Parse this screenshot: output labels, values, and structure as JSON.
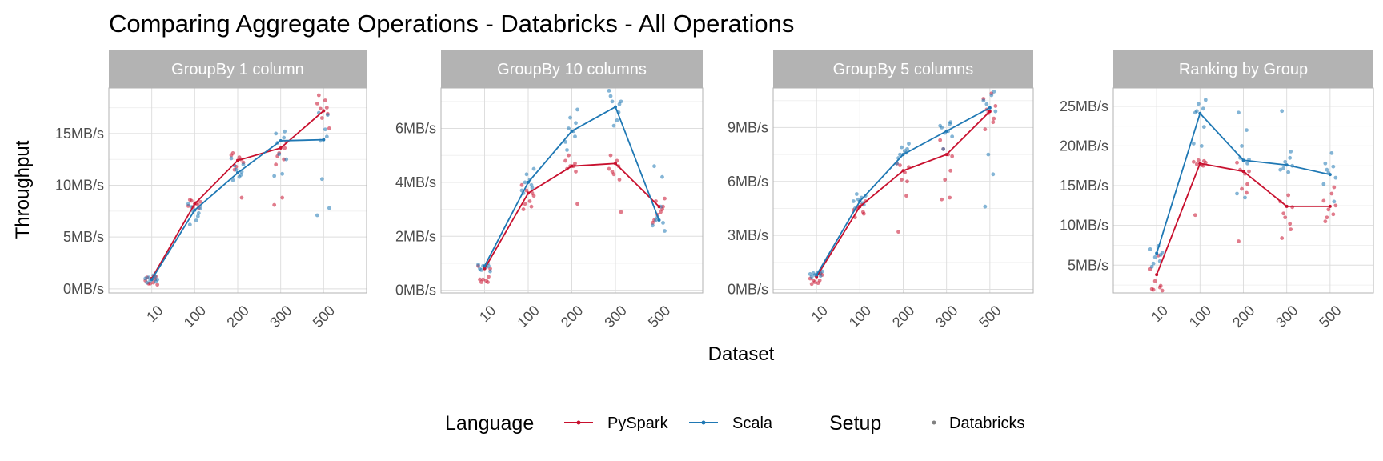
{
  "chart_data": {
    "type": "line",
    "title": "Comparing Aggregate Operations - Databricks - All Operations",
    "xlabel": "Dataset",
    "ylabel": "Throughput",
    "categories": [
      "10",
      "100",
      "200",
      "300",
      "500"
    ],
    "colors": {
      "PySpark": "#c8102e",
      "Scala": "#1f78b4",
      "Databricks": "#808080"
    },
    "legend": {
      "position": "bottom",
      "groups": [
        {
          "title": "Language",
          "items": [
            "PySpark",
            "Scala"
          ]
        },
        {
          "title": "Setup",
          "items": [
            "Databricks"
          ]
        }
      ]
    },
    "grid": true,
    "panels": [
      {
        "label": "GroupBy 1 column",
        "ylim": [
          -0.4,
          19.4
        ],
        "yticks": [
          0,
          5,
          10,
          15
        ],
        "ytick_labels": [
          "0MB/s",
          "5MB/s",
          "10MB/s",
          "15MB/s"
        ],
        "series": [
          {
            "name": "PySpark",
            "values": [
              1.0,
              8.2,
              12.4,
              13.6,
              17.2
            ],
            "points": [
              [
                1.1,
                0.9,
                0.5,
                0.4,
                0.8,
                0.6,
                1.2,
                0.5
              ],
              [
                8.6,
                8.1,
                7.9,
                8.4,
                8.0,
                8.3,
                7.8,
                8.5
              ],
              [
                13.1,
                12.5,
                11.8,
                12.2,
                12.9,
                12.7,
                8.8,
                11.5
              ],
              [
                12.0,
                12.5,
                13.1,
                14.2,
                8.1,
                8.8,
                13.6,
                12.8
              ],
              [
                18.7,
                17.5,
                16.5,
                15.5,
                17.9,
                18.2,
                16.9,
                17.4
              ]
            ]
          },
          {
            "name": "Scala",
            "values": [
              0.9,
              7.6,
              11.2,
              14.3,
              14.4
            ],
            "points": [
              [
                0.6,
                1.2,
                0.8,
                0.9,
                1.0,
                1.3,
                0.7,
                1.1
              ],
              [
                6.2,
                7.0,
                7.5,
                7.8,
                8.2,
                6.6,
                7.3,
                7.9
              ],
              [
                10.5,
                11.0,
                11.5,
                12.0,
                12.6,
                10.8,
                11.3,
                11.9
              ],
              [
                15.0,
                14.6,
                13.0,
                12.5,
                10.9,
                11.1,
                15.2,
                14.1
              ],
              [
                17.0,
                14.7,
                10.6,
                7.8,
                7.1,
                15.4,
                16.8,
                14.3
              ]
            ]
          }
        ]
      },
      {
        "label": "GroupBy 10 columns",
        "ylim": [
          -0.1,
          7.5
        ],
        "yticks": [
          0,
          2,
          4,
          6
        ],
        "ytick_labels": [
          "0MB/s",
          "2MB/s",
          "4MB/s",
          "6MB/s"
        ],
        "series": [
          {
            "name": "PySpark",
            "values": [
              0.8,
              3.6,
              4.6,
              4.7,
              3.1
            ],
            "points": [
              [
                0.4,
                0.3,
                0.4,
                0.8,
                0.9,
                0.35,
                0.5,
                0.3
              ],
              [
                3.0,
                3.1,
                3.7,
                3.5,
                3.9,
                3.3,
                3.6,
                3.2
              ],
              [
                4.5,
                4.7,
                4.6,
                3.2,
                4.8,
                4.6,
                4.4,
                5.0
              ],
              [
                5.0,
                4.6,
                4.3,
                2.9,
                4.5,
                4.8,
                4.1,
                4.4
              ],
              [
                2.6,
                3.0,
                2.8,
                3.4,
                2.5,
                2.9,
                3.1,
                3.3
              ]
            ]
          },
          {
            "name": "Scala",
            "values": [
              0.9,
              4.0,
              5.9,
              6.8,
              2.6
            ],
            "points": [
              [
                0.8,
                1.0,
                0.9,
                0.7,
                0.95,
                0.85,
                0.9,
                0.75
              ],
              [
                3.6,
                3.9,
                4.3,
                4.5,
                3.7,
                4.1,
                3.8,
                4.0
              ],
              [
                5.2,
                5.7,
                6.4,
                6.7,
                5.5,
                5.9,
                6.2,
                6.0
              ],
              [
                7.2,
                6.6,
                6.1,
                7.0,
                7.4,
                6.3,
                6.9,
                7.0
              ],
              [
                4.6,
                4.2,
                2.7,
                2.2,
                2.4,
                3.1,
                2.5,
                2.6
              ]
            ]
          }
        ]
      },
      {
        "label": "GroupBy 5 columns",
        "ylim": [
          -0.2,
          11.2
        ],
        "yticks": [
          0,
          3,
          6,
          9
        ],
        "ytick_labels": [
          "0MB/s",
          "3MB/s",
          "6MB/s",
          "9MB/s"
        ],
        "series": [
          {
            "name": "PySpark",
            "values": [
              0.7,
              4.6,
              6.6,
              7.5,
              9.9
            ],
            "points": [
              [
                0.3,
                0.5,
                0.4,
                0.8,
                0.6,
                0.35,
                0.9,
                0.5
              ],
              [
                4.0,
                4.3,
                4.6,
                4.9,
                4.4,
                4.7,
                4.2,
                4.5
              ],
              [
                3.2,
                5.2,
                6.1,
                6.8,
                7.0,
                6.5,
                6.0,
                6.9
              ],
              [
                5.0,
                5.1,
                6.1,
                7.4,
                8.3,
                7.5,
                6.6,
                7.8
              ],
              [
                8.9,
                9.3,
                9.8,
                10.2,
                10.6,
                10.9,
                9.5,
                10.0
              ]
            ]
          },
          {
            "name": "Scala",
            "values": [
              0.8,
              4.9,
              7.5,
              8.8,
              10.1
            ],
            "points": [
              [
                0.7,
                0.9,
                0.8,
                1.0,
                0.85,
                0.95,
                0.75,
                0.9
              ],
              [
                4.5,
                4.8,
                5.0,
                5.2,
                4.9,
                5.1,
                4.7,
                5.3
              ],
              [
                7.3,
                7.6,
                7.9,
                8.1,
                7.0,
                7.7,
                7.8,
                7.5
              ],
              [
                9.0,
                9.2,
                8.7,
                8.5,
                9.1,
                8.8,
                9.3,
                7.8
              ],
              [
                4.6,
                6.4,
                7.5,
                9.9,
                10.5,
                10.8,
                11.0,
                10.3
              ]
            ]
          }
        ]
      },
      {
        "label": "Ranking by Group",
        "ylim": [
          1.5,
          27.3
        ],
        "yticks": [
          5,
          10,
          15,
          20,
          25
        ],
        "ytick_labels": [
          "5MB/s",
          "10MB/s",
          "15MB/s",
          "20MB/s",
          "25MB/s"
        ],
        "series": [
          {
            "name": "PySpark",
            "values": [
              3.8,
              17.8,
              16.8,
              12.4,
              12.4
            ],
            "points": [
              [
                2.0,
                2.2,
                3.0,
                1.8,
                4.5,
                6.2,
                2.4,
                1.9
              ],
              [
                11.3,
                17.5,
                18.2,
                17.9,
                18.0,
                17.6,
                18.1,
                17.7
              ],
              [
                8.0,
                14.1,
                14.6,
                16.8,
                17.9,
                16.5,
                15.2,
                17.0
              ],
              [
                8.4,
                10.2,
                11.0,
                12.3,
                13.0,
                13.8,
                9.5,
                11.5
              ],
              [
                10.5,
                11.4,
                12.0,
                12.5,
                13.1,
                14.0,
                14.8,
                11.0
              ]
            ]
          },
          {
            "name": "Scala",
            "values": [
              6.5,
              24.1,
              18.2,
              17.6,
              16.4
            ],
            "points": [
              [
                4.8,
                5.5,
                6.0,
                6.6,
                7.0,
                7.4,
                6.3,
                5.2
              ],
              [
                24.2,
                24.7,
                25.3,
                25.8,
                20.3,
                20.0,
                22.4,
                24.4
              ],
              [
                24.2,
                22.0,
                20.0,
                18.3,
                14.0,
                13.5,
                17.8,
                18.5
              ],
              [
                24.4,
                18.5,
                18.0,
                17.5,
                17.0,
                16.7,
                19.3,
                17.2
              ],
              [
                17.8,
                17.4,
                16.6,
                16.0,
                15.2,
                19.1,
                13.0,
                17.0
              ]
            ]
          }
        ]
      }
    ]
  }
}
